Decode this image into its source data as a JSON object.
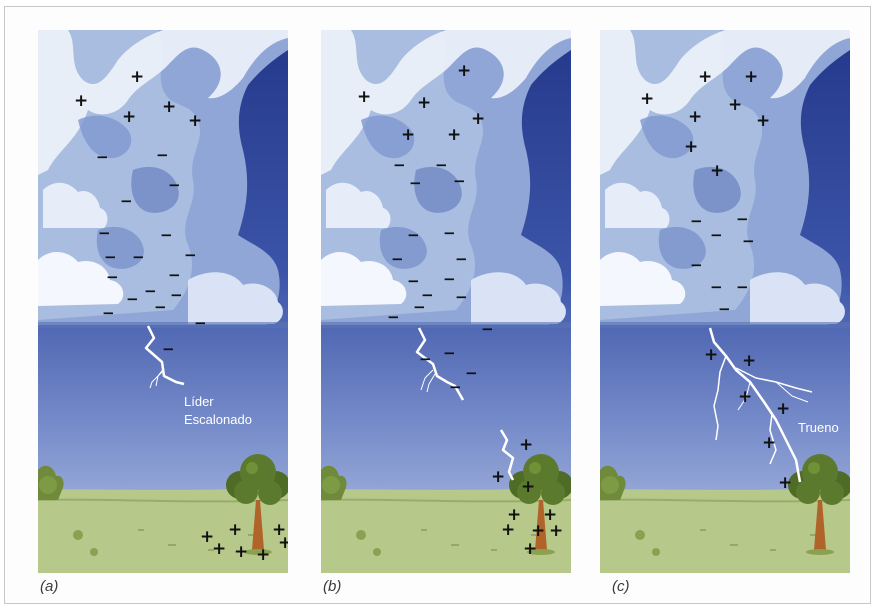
{
  "panels": [
    {
      "id": "a",
      "label": "(a)",
      "annotation_lines": [
        "Líder",
        "Escalonado"
      ]
    },
    {
      "id": "b",
      "label": "(b)",
      "annotation_lines": []
    },
    {
      "id": "c",
      "label": "(c)",
      "annotation_lines": [
        "Trueno"
      ]
    }
  ],
  "symbols": {
    "positive": "+",
    "negative": "−"
  },
  "colors": {
    "sky_top": "#2c3f8f",
    "sky_bottom": "#aab8dc",
    "cloud_light": "#eef3fb",
    "cloud_mid": "#a9bde0",
    "cloud_dark": "#6f88c4",
    "ground": "#b7c98a",
    "tree_foliage": "#5c7a2e",
    "trunk": "#b0642a",
    "lightning": "#ffffff"
  }
}
